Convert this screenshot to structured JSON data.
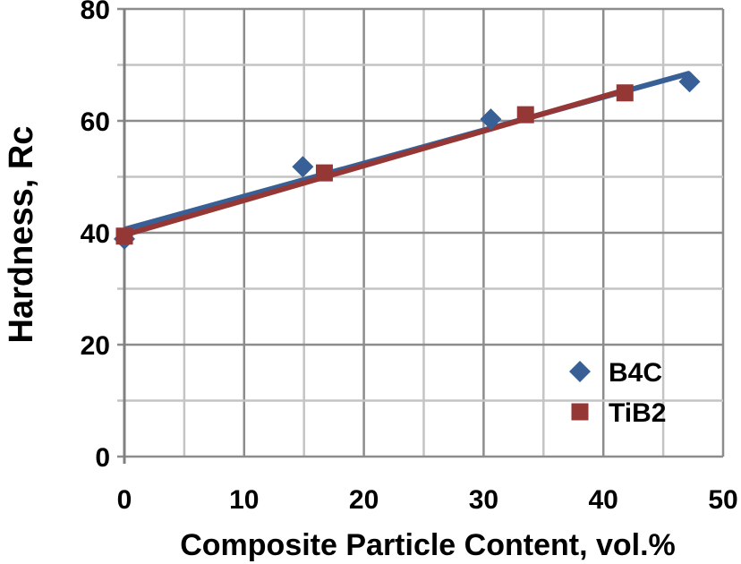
{
  "chart_data": {
    "type": "scatter",
    "title": "",
    "xlabel": "Composite Particle Content, vol.%",
    "ylabel": "Hardness, Rc",
    "xlim": [
      0,
      50
    ],
    "ylim": [
      0,
      80
    ],
    "xticks": [
      0,
      10,
      20,
      30,
      40,
      50
    ],
    "yticks": [
      0,
      20,
      40,
      60,
      80
    ],
    "x_minor_grid_step": 5,
    "y_minor_grid_step": 10,
    "grid": true,
    "legend_position": "bottom-right",
    "series": [
      {
        "name": "B4C",
        "marker": "diamond",
        "color": "#386096",
        "x": [
          0,
          14.9,
          30.6,
          47.2
        ],
        "y": [
          38.9,
          51.8,
          60.3,
          67.0
        ],
        "trendline": {
          "x": [
            0,
            47.2
          ],
          "y": [
            40.6,
            68.5
          ]
        }
      },
      {
        "name": "TiB2",
        "marker": "square",
        "color": "#953735",
        "x": [
          0,
          16.7,
          33.5,
          41.8
        ],
        "y": [
          39.4,
          50.7,
          61.1,
          65.0
        ],
        "trendline": {
          "x": [
            0,
            41.8
          ],
          "y": [
            39.6,
            65.5
          ]
        }
      }
    ]
  }
}
